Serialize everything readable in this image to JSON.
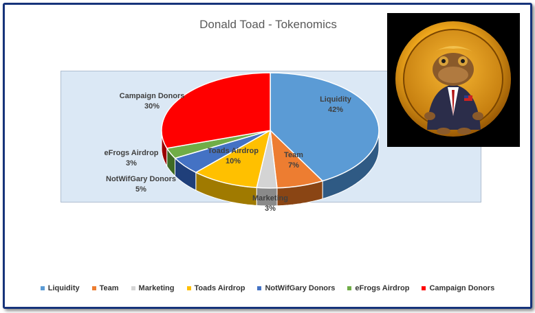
{
  "chart_data": {
    "type": "pie",
    "title": "Donald Toad - Tokenomics",
    "slices": [
      {
        "name": "Liquidity",
        "value": 42,
        "label": "42%",
        "color": "#5b9bd5",
        "side": "#2f5a84"
      },
      {
        "name": "Team",
        "value": 7,
        "label": "7%",
        "color": "#ed7d31",
        "side": "#8a4514"
      },
      {
        "name": "Marketing",
        "value": 3,
        "label": "3%",
        "color": "#d4d4d4",
        "side": "#8a8a8a"
      },
      {
        "name": "Toads Airdrop",
        "value": 10,
        "label": "10%",
        "color": "#ffc000",
        "side": "#a07a00"
      },
      {
        "name": "NotWifGary Donors",
        "value": 5,
        "label": "5%",
        "color": "#4472c4",
        "side": "#1f3f7a"
      },
      {
        "name": "eFrogs Airdrop",
        "value": 3,
        "label": "3%",
        "color": "#70ad47",
        "side": "#3f6a24"
      },
      {
        "name": "Campaign Donors",
        "value": 30,
        "label": "30%",
        "color": "#ff0000",
        "side": "#9a0000"
      }
    ],
    "legend_position": "bottom",
    "style": "3d"
  },
  "image": {
    "description_icon": "toad-coin-logo"
  }
}
